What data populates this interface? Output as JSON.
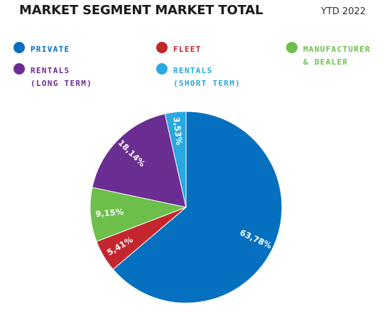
{
  "header": {
    "title": "MARKET SEGMENT MARKET TOTAL",
    "period": "YTD 2022"
  },
  "legend": [
    {
      "line1": "PRIVATE",
      "line2": "",
      "color": "#0570bf"
    },
    {
      "line1": "FLEET",
      "line2": "",
      "color": "#c3262d"
    },
    {
      "line1": "MANUFACTURER",
      "line2": "& DEALER",
      "color": "#6cbf4b"
    },
    {
      "line1": "RENTALS",
      "line2": "(LONG TERM)",
      "color": "#6a2d91"
    },
    {
      "line1": "RENTALS",
      "line2": "(SHORT TERM)",
      "color": "#2aa8e0"
    }
  ],
  "chart_data": {
    "type": "pie",
    "categories": [
      "PRIVATE",
      "FLEET",
      "MANUFACTURER & DEALER",
      "RENTALS (LONG TERM)",
      "RENTALS (SHORT TERM)"
    ],
    "values": [
      63.78,
      5.41,
      9.15,
      18.14,
      3.53
    ],
    "labels": [
      "63,78%",
      "5,41%",
      "9,15%",
      "18,14%",
      "3,53%"
    ],
    "colors": [
      "#0570bf",
      "#c3262d",
      "#6cbf4b",
      "#6a2d91",
      "#2aa8e0"
    ]
  }
}
